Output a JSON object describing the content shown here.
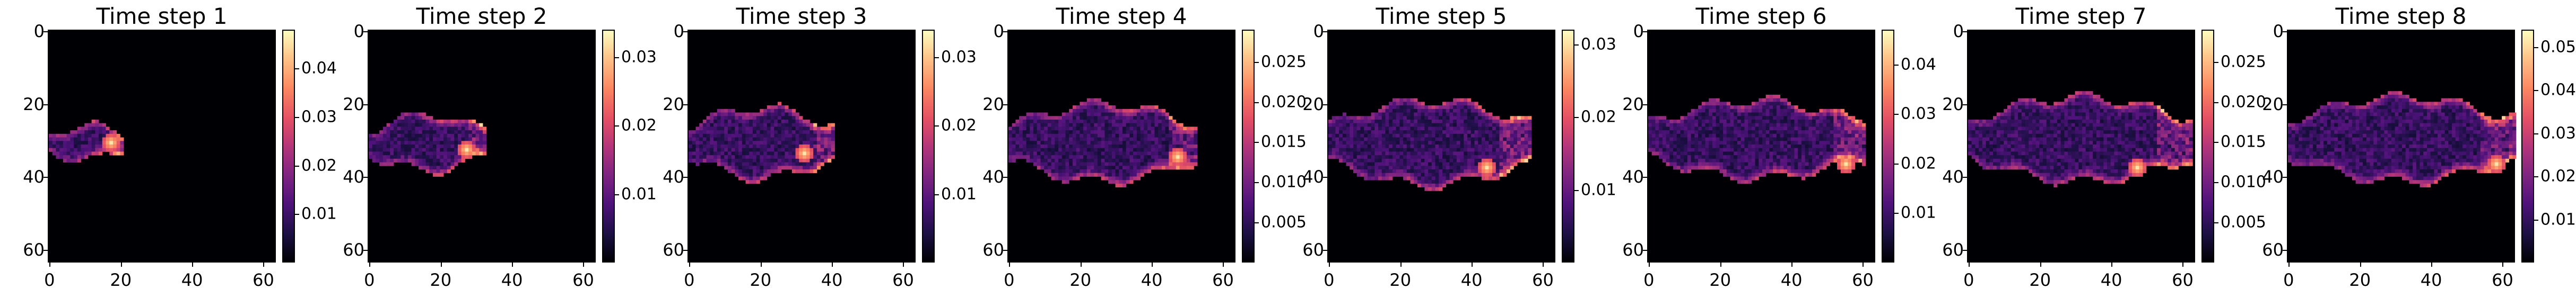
{
  "chart_data": [
    {
      "type": "heatmap",
      "title": "Time step 1",
      "xlim": [
        0,
        63
      ],
      "ylim": [
        63,
        0
      ],
      "xticks": [
        "0",
        "20",
        "40",
        "60"
      ],
      "yticks": [
        "0",
        "20",
        "40",
        "60"
      ],
      "colormap": "magma",
      "colorbar_range": [
        0,
        0.048
      ],
      "colorbar_ticks": [
        "0.01",
        "0.02",
        "0.03",
        "0.04"
      ],
      "plume": {
        "x_start": 0,
        "x_end": 20,
        "y_center": 31,
        "half_width": 5,
        "peak_x": 17,
        "peak_y": 31
      }
    },
    {
      "type": "heatmap",
      "title": "Time step 2",
      "xlim": [
        0,
        63
      ],
      "ylim": [
        63,
        0
      ],
      "xticks": [
        "0",
        "20",
        "40",
        "60"
      ],
      "yticks": [
        "0",
        "20",
        "40",
        "60"
      ],
      "colormap": "magma",
      "colorbar_range": [
        0,
        0.034
      ],
      "colorbar_ticks": [
        "0.01",
        "0.02",
        "0.03"
      ],
      "plume": {
        "x_start": 0,
        "x_end": 32,
        "y_center": 31,
        "half_width": 8,
        "peak_x": 27,
        "peak_y": 33
      }
    },
    {
      "type": "heatmap",
      "title": "Time step 3",
      "xlim": [
        0,
        63
      ],
      "ylim": [
        63,
        0
      ],
      "xticks": [
        "0",
        "20",
        "40",
        "60"
      ],
      "yticks": [
        "0",
        "20",
        "40",
        "60"
      ],
      "colormap": "magma",
      "colorbar_range": [
        0,
        0.034
      ],
      "colorbar_ticks": [
        "0.01",
        "0.02",
        "0.03"
      ],
      "plume": {
        "x_start": 0,
        "x_end": 40,
        "y_center": 31,
        "half_width": 10,
        "peak_x": 32,
        "peak_y": 34
      }
    },
    {
      "type": "heatmap",
      "title": "Time step 4",
      "xlim": [
        0,
        63
      ],
      "ylim": [
        63,
        0
      ],
      "xticks": [
        "0",
        "20",
        "40",
        "60"
      ],
      "yticks": [
        "0",
        "20",
        "40",
        "60"
      ],
      "colormap": "magma",
      "colorbar_range": [
        0,
        0.029
      ],
      "colorbar_ticks": [
        "0.005",
        "0.010",
        "0.015",
        "0.020",
        "0.025"
      ],
      "plume": {
        "x_start": 0,
        "x_end": 52,
        "y_center": 31,
        "half_width": 11,
        "peak_x": 47,
        "peak_y": 35
      }
    },
    {
      "type": "heatmap",
      "title": "Time step 5",
      "xlim": [
        0,
        63
      ],
      "ylim": [
        63,
        0
      ],
      "xticks": [
        "0",
        "20",
        "40",
        "60"
      ],
      "yticks": [
        "0",
        "20",
        "40",
        "60"
      ],
      "colormap": "magma",
      "colorbar_range": [
        0,
        0.032
      ],
      "colorbar_ticks": [
        "0.01",
        "0.02",
        "0.03"
      ],
      "plume": {
        "x_start": 0,
        "x_end": 56,
        "y_center": 31,
        "half_width": 12,
        "peak_x": 44,
        "peak_y": 38
      }
    },
    {
      "type": "heatmap",
      "title": "Time step 6",
      "xlim": [
        0,
        63
      ],
      "ylim": [
        63,
        0
      ],
      "xticks": [
        "0",
        "20",
        "40",
        "60"
      ],
      "yticks": [
        "0",
        "20",
        "40",
        "60"
      ],
      "colormap": "magma",
      "colorbar_range": [
        0,
        0.047
      ],
      "colorbar_ticks": [
        "0.01",
        "0.02",
        "0.03",
        "0.04"
      ],
      "plume": {
        "x_start": 0,
        "x_end": 60,
        "y_center": 30,
        "half_width": 11,
        "peak_x": 55,
        "peak_y": 37
      }
    },
    {
      "type": "heatmap",
      "title": "Time step 7",
      "xlim": [
        0,
        63
      ],
      "ylim": [
        63,
        0
      ],
      "xticks": [
        "0",
        "20",
        "40",
        "60"
      ],
      "yticks": [
        "0",
        "20",
        "40",
        "60"
      ],
      "colormap": "magma",
      "colorbar_range": [
        0,
        0.029
      ],
      "colorbar_ticks": [
        "0.005",
        "0.010",
        "0.015",
        "0.020",
        "0.025"
      ],
      "plume": {
        "x_start": 0,
        "x_end": 62,
        "y_center": 30,
        "half_width": 12,
        "peak_x": 47,
        "peak_y": 38
      }
    },
    {
      "type": "heatmap",
      "title": "Time step 8",
      "xlim": [
        0,
        63
      ],
      "ylim": [
        63,
        0
      ],
      "xticks": [
        "0",
        "20",
        "40",
        "60"
      ],
      "yticks": [
        "0",
        "20",
        "40",
        "60"
      ],
      "colormap": "magma",
      "colorbar_range": [
        0,
        0.054
      ],
      "colorbar_ticks": [
        "0.01",
        "0.02",
        "0.03",
        "0.04",
        "0.05"
      ],
      "plume": {
        "x_start": 0,
        "x_end": 63,
        "y_center": 30,
        "half_width": 12,
        "peak_x": 58,
        "peak_y": 37
      }
    }
  ]
}
